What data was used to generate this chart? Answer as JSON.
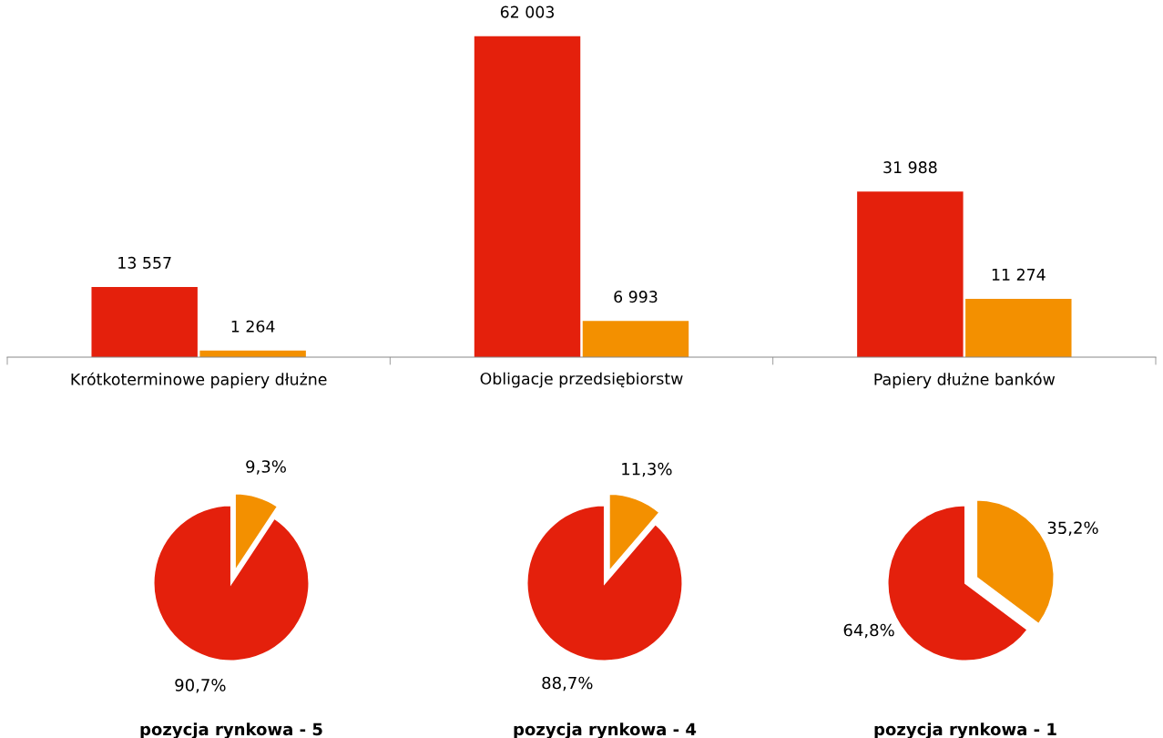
{
  "chart_data": [
    {
      "type": "bar",
      "categories": [
        "Krótkoterminowe papiery dłużne",
        "Obligacje przedsiębiorstw",
        "Papiery dłużne banków"
      ],
      "tick_labels": "x",
      "grid": false,
      "legend": false,
      "series": [
        {
          "color": "#e4200c",
          "values": [
            13557,
            62003,
            31988
          ],
          "value_labels": [
            "13 557",
            "62 003",
            "31 988"
          ]
        },
        {
          "color": "#f39000",
          "values": [
            1264,
            6993,
            11274
          ],
          "value_labels": [
            "1 264",
            "6 993",
            "11 274"
          ]
        }
      ]
    },
    {
      "type": "pie",
      "title": "pozycja rynkowa - 5",
      "categories": [
        null,
        null
      ],
      "values": [
        9.3,
        90.7
      ],
      "colors": [
        "#f39000",
        "#e4200c"
      ],
      "value_labels": [
        "9,3%",
        "90,7%"
      ]
    },
    {
      "type": "pie",
      "title": "pozycja rynkowa - 4",
      "categories": [
        null,
        null
      ],
      "values": [
        11.3,
        88.7
      ],
      "colors": [
        "#f39000",
        "#e4200c"
      ],
      "value_labels": [
        "11,3%",
        "88,7%"
      ]
    },
    {
      "type": "pie",
      "title": "pozycja rynkowa - 1",
      "categories": [
        null,
        null
      ],
      "values": [
        35.2,
        64.8
      ],
      "colors": [
        "#f39000",
        "#e4200c"
      ],
      "value_labels": [
        "35,2%",
        "64,8%"
      ]
    }
  ]
}
